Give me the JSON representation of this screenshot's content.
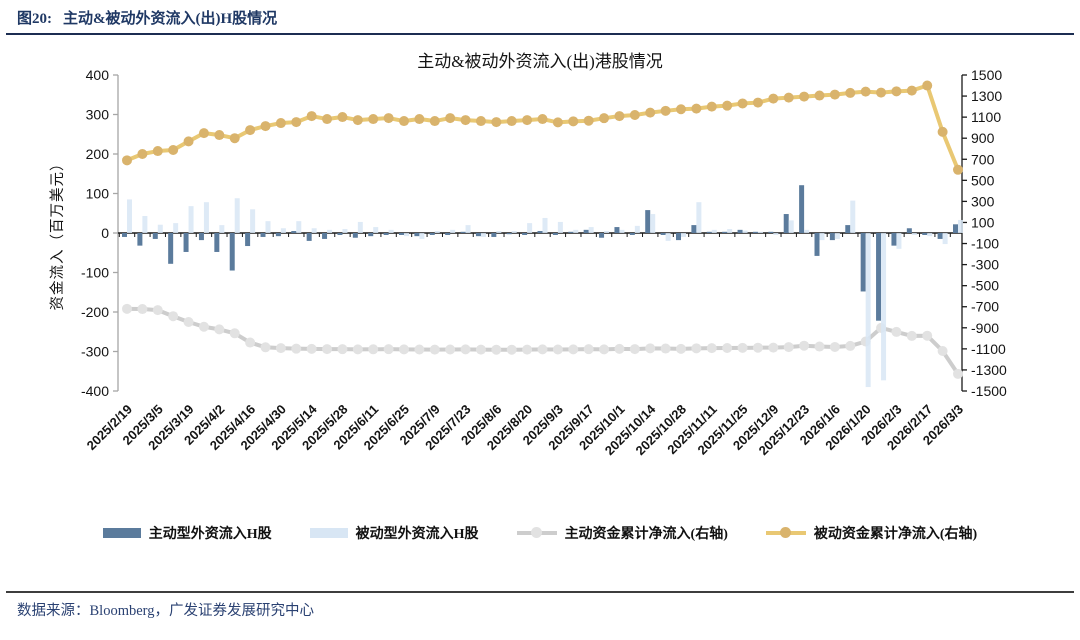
{
  "header": {
    "figure_label": "图20:",
    "title": "主动&被动外资流入(出)H股情况"
  },
  "footer": {
    "source": "数据来源：Bloomberg，广发证券发展研究中心"
  },
  "colors": {
    "heading_navy": "#1F3864",
    "active_bar": "#5B7B9C",
    "passive_bar": "#D8E6F4",
    "active_line_gray": "#CDCDCD",
    "passive_line_gold": "#E9C873"
  },
  "chart_data": {
    "type": "bar",
    "subtype": "combo-bar-line-dual-axis",
    "title": "主动&被动外资流入(出)港股情况",
    "xlabel": "",
    "ylabel_left": "资金流入（百万美元）",
    "grid": false,
    "legend_position": "bottom",
    "axes": {
      "left": {
        "min": -400,
        "max": 400,
        "ticks": [
          400,
          300,
          200,
          100,
          0,
          -100,
          -200,
          -300,
          -400
        ]
      },
      "right": {
        "min": -1500,
        "max": 1500,
        "ticks": [
          1500,
          1300,
          1100,
          900,
          700,
          500,
          300,
          100,
          -100,
          -300,
          -500,
          -700,
          -900,
          -1100,
          -1300,
          -1500
        ]
      }
    },
    "x_labels": [
      "2025/2/19",
      "2025/3/5",
      "2025/3/19",
      "2025/4/2",
      "2025/4/16",
      "2025/4/30",
      "2025/5/14",
      "2025/5/28",
      "2025/6/11",
      "2025/6/25",
      "2025/7/9",
      "2025/7/23",
      "2025/8/6",
      "2025/8/20",
      "2025/9/3",
      "2025/9/17",
      "2025/10/1",
      "2025/10/14",
      "2025/10/28",
      "2025/11/11",
      "2025/11/25",
      "2025/12/9",
      "2025/12/23",
      "2026/1/6",
      "2026/1/20",
      "2026/2/3",
      "2026/2/17",
      "2026/3/3"
    ],
    "series": [
      {
        "name": "主动型外资流入H股",
        "type": "bar",
        "axis": "left",
        "color": "#5B7B9C",
        "values": [
          -10,
          -32,
          -15,
          -78,
          -48,
          -18,
          -48,
          -95,
          -33,
          -10,
          -8,
          5,
          -20,
          -15,
          -5,
          -12,
          -8,
          -5,
          -5,
          -8,
          -5,
          -5,
          3,
          -8,
          -10,
          -3,
          -5,
          5,
          -5,
          3,
          8,
          -12,
          15,
          -5,
          58,
          -5,
          -18,
          20,
          3,
          3,
          8,
          3,
          3,
          48,
          121,
          -58,
          -18,
          20,
          -148,
          -222,
          -32,
          12,
          -5,
          -15,
          22
        ]
      },
      {
        "name": "被动型外资流入H股",
        "type": "bar",
        "axis": "left",
        "color": "#D8E6F4",
        "values": [
          85,
          43,
          21,
          25,
          68,
          78,
          20,
          88,
          60,
          30,
          12,
          30,
          12,
          8,
          10,
          28,
          15,
          8,
          -8,
          -15,
          5,
          8,
          20,
          -10,
          5,
          5,
          25,
          38,
          28,
          8,
          15,
          5,
          8,
          18,
          48,
          -20,
          -10,
          78,
          8,
          10,
          6,
          3,
          -5,
          32,
          8,
          -18,
          -15,
          82,
          -390,
          -373,
          -40,
          -5,
          -8,
          -28,
          33
        ]
      },
      {
        "name": "主动资金累计净流入(右轴)",
        "type": "line",
        "axis": "right",
        "color": "#CDCDCD",
        "marker": "#E2E2E2",
        "values": [
          -720,
          -722,
          -732,
          -790,
          -845,
          -890,
          -915,
          -952,
          -1040,
          -1085,
          -1093,
          -1098,
          -1100,
          -1102,
          -1103,
          -1105,
          -1104,
          -1103,
          -1105,
          -1106,
          -1107,
          -1106,
          -1105,
          -1107,
          -1108,
          -1108,
          -1107,
          -1105,
          -1106,
          -1105,
          -1103,
          -1105,
          -1100,
          -1102,
          -1095,
          -1097,
          -1100,
          -1095,
          -1093,
          -1092,
          -1090,
          -1089,
          -1088,
          -1083,
          -1070,
          -1078,
          -1082,
          -1072,
          -1030,
          -901,
          -939,
          -977,
          -975,
          -1120,
          -1338
        ]
      },
      {
        "name": "被动资金累计净流入(右轴)",
        "type": "line",
        "axis": "right",
        "color": "#E9C873",
        "marker": "#D9B36C",
        "values": [
          690,
          750,
          778,
          788,
          870,
          948,
          930,
          900,
          977,
          1015,
          1044,
          1053,
          1110,
          1082,
          1101,
          1072,
          1082,
          1091,
          1063,
          1082,
          1063,
          1091,
          1072,
          1063,
          1053,
          1063,
          1072,
          1082,
          1050,
          1060,
          1066,
          1090,
          1110,
          1120,
          1143,
          1160,
          1175,
          1181,
          1200,
          1209,
          1230,
          1238,
          1276,
          1285,
          1295,
          1305,
          1314,
          1330,
          1342,
          1333,
          1345,
          1352,
          1400,
          960,
          600
        ]
      }
    ]
  }
}
